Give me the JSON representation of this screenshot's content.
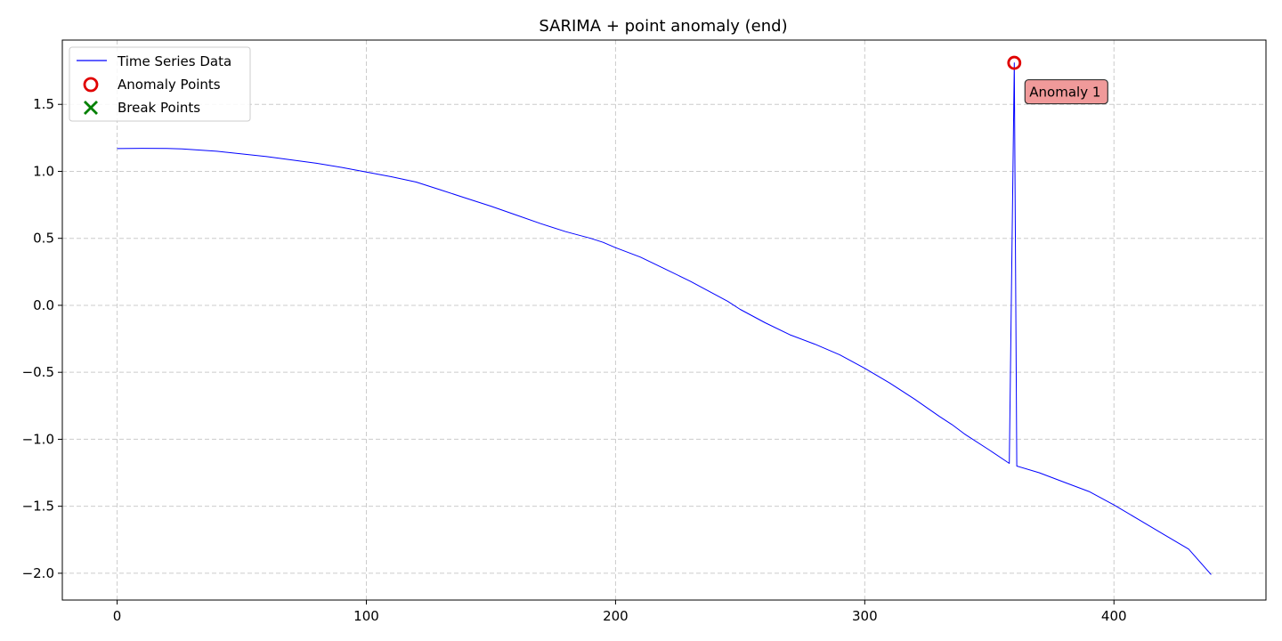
{
  "chart_data": {
    "type": "line",
    "title": "SARIMA + point anomaly (end)",
    "xlabel": "",
    "ylabel": "",
    "xlim": [
      -22,
      461
    ],
    "ylim": [
      -2.2,
      1.98
    ],
    "xticks": [
      0,
      100,
      200,
      300,
      400
    ],
    "xtick_labels": [
      "0",
      "100",
      "200",
      "300",
      "400"
    ],
    "yticks": [
      -2.0,
      -1.5,
      -1.0,
      -0.5,
      0.0,
      0.5,
      1.0,
      1.5
    ],
    "ytick_labels": [
      "−2.0",
      "−1.5",
      "−1.0",
      "−0.5",
      "0.0",
      "0.5",
      "1.0",
      "1.5"
    ],
    "grid": true,
    "legend": {
      "position": "upper-left",
      "entries": [
        {
          "label": "Time Series Data",
          "marker": "line",
          "color": "#0000ff"
        },
        {
          "label": "Anomaly Points",
          "marker": "circle",
          "color": "#e00000"
        },
        {
          "label": "Break Points",
          "marker": "x",
          "color": "#008000"
        }
      ]
    },
    "series": [
      {
        "name": "Time Series Data",
        "color": "#0000ff",
        "x": [
          0,
          10,
          20,
          26,
          40,
          60,
          80,
          90,
          100,
          110,
          120,
          130,
          140,
          150,
          160,
          170,
          180,
          190,
          195,
          200,
          210,
          220,
          230,
          240,
          245,
          250,
          260,
          270,
          280,
          290,
          300,
          310,
          320,
          330,
          335,
          340,
          350,
          358,
          360,
          361,
          370,
          380,
          390,
          400,
          410,
          420,
          430,
          439
        ],
        "y": [
          1.17,
          1.172,
          1.171,
          1.168,
          1.15,
          1.11,
          1.06,
          1.03,
          0.995,
          0.96,
          0.92,
          0.86,
          0.8,
          0.74,
          0.675,
          0.61,
          0.55,
          0.5,
          0.47,
          0.43,
          0.36,
          0.27,
          0.18,
          0.08,
          0.03,
          -0.03,
          -0.13,
          -0.22,
          -0.29,
          -0.37,
          -0.47,
          -0.58,
          -0.7,
          -0.83,
          -0.89,
          -0.96,
          -1.08,
          -1.18,
          1.81,
          -1.2,
          -1.25,
          -1.32,
          -1.39,
          -1.49,
          -1.6,
          -1.71,
          -1.82,
          -2.01
        ]
      }
    ],
    "anomaly_points": [
      {
        "x": 360,
        "y": 1.81,
        "label": "Anomaly 1"
      }
    ],
    "break_points": [],
    "colors": {
      "line": "#0000ff",
      "anomaly": "#e00000",
      "anomaly_label_bg": "#f09a9a",
      "break": "#008000",
      "grid": "#cccccc"
    }
  }
}
